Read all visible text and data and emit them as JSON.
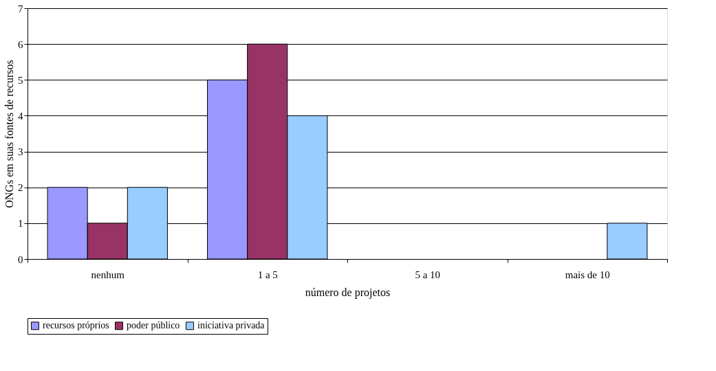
{
  "chart_data": {
    "type": "bar",
    "xlabel": "número de projetos",
    "ylabel": "ONGs em suas fontes de recursos",
    "categories": [
      "nenhum",
      "1 a 5",
      "5 a 10",
      "mais de 10"
    ],
    "series": [
      {
        "name": "recursos próprios",
        "color": "#9999ff",
        "values": [
          2,
          5,
          0,
          0
        ]
      },
      {
        "name": "poder público",
        "color": "#993366",
        "values": [
          1,
          6,
          0,
          0
        ]
      },
      {
        "name": "iniciativa privada",
        "color": "#99ccff",
        "values": [
          2,
          4,
          0,
          1
        ]
      }
    ],
    "ylim": [
      0,
      7
    ],
    "yticks": [
      0,
      1,
      2,
      3,
      4,
      5,
      6,
      7
    ],
    "grid": "y",
    "legend": "bottom"
  }
}
